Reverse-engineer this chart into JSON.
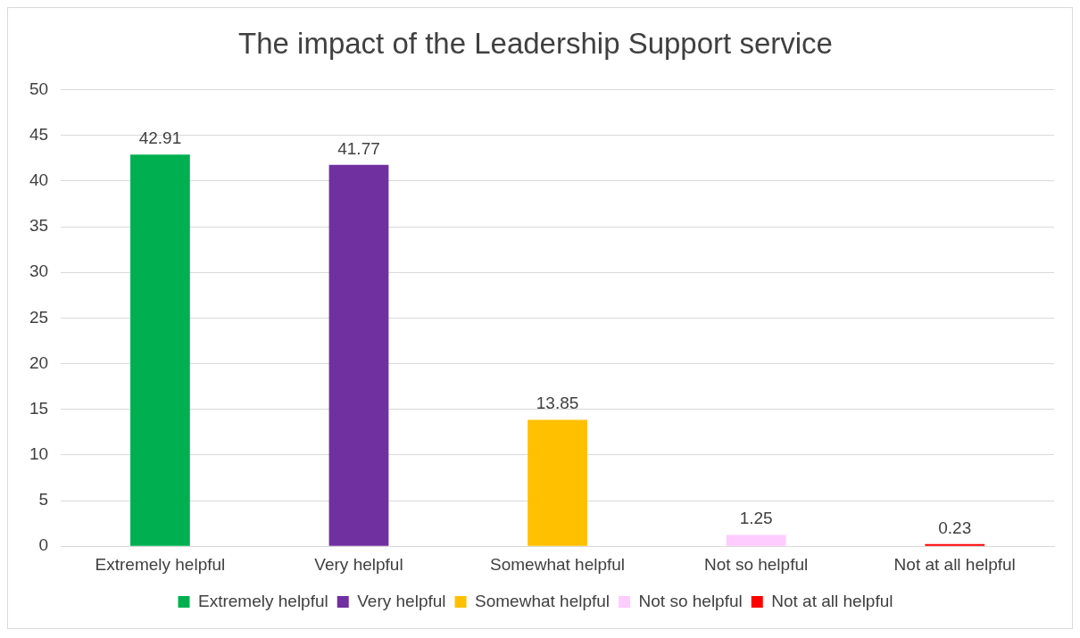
{
  "chart_data": {
    "type": "bar",
    "title": "The impact of the Leadership Support service",
    "categories": [
      "Extremely helpful",
      "Very helpful",
      "Somewhat helpful",
      "Not so helpful",
      "Not at all helpful"
    ],
    "series": [
      {
        "name": "Extremely helpful",
        "color": "#00b050",
        "values": [
          42.91,
          null,
          null,
          null,
          null
        ]
      },
      {
        "name": "Very helpful",
        "color": "#7030a0",
        "values": [
          null,
          41.77,
          null,
          null,
          null
        ]
      },
      {
        "name": "Somewhat helpful",
        "color": "#ffc000",
        "values": [
          null,
          null,
          13.85,
          null,
          null
        ]
      },
      {
        "name": "Not so helpful",
        "color": "#ffccff",
        "values": [
          null,
          null,
          null,
          1.25,
          null
        ]
      },
      {
        "name": "Not at all helpful",
        "color": "#ff0000",
        "values": [
          null,
          null,
          null,
          null,
          0.23
        ]
      }
    ],
    "ylim": [
      0,
      50
    ],
    "yticks": [
      0,
      5,
      10,
      15,
      20,
      25,
      30,
      35,
      40,
      45,
      50
    ],
    "grid": "y",
    "legend": "bottom",
    "data_labels": true
  }
}
